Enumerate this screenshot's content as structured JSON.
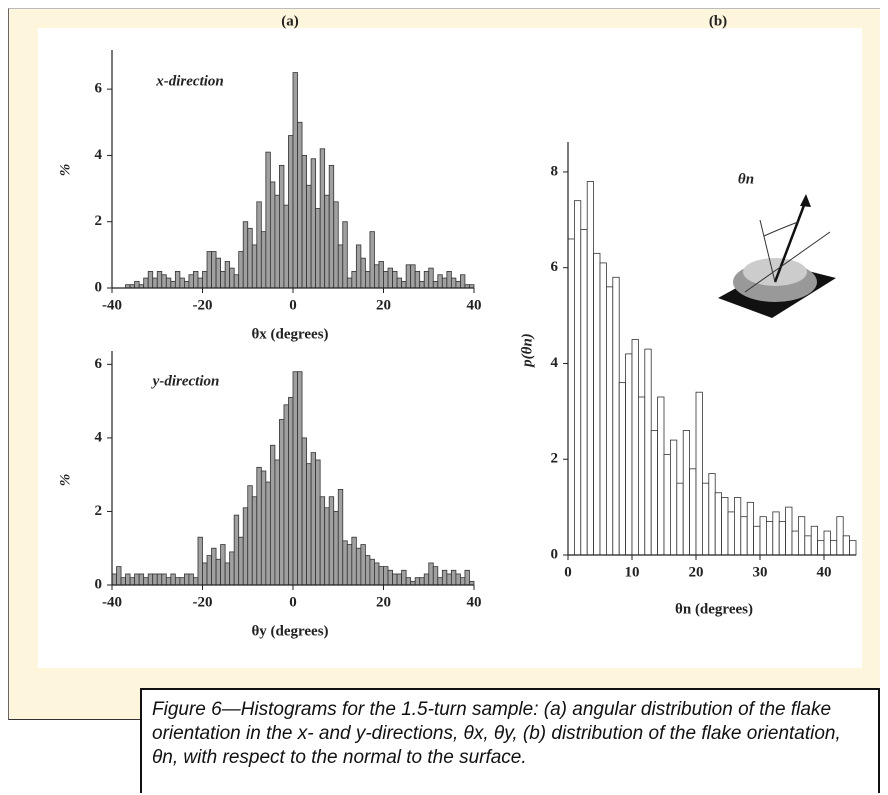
{
  "chart_data": [
    {
      "type": "histogram",
      "title": "(a)",
      "annotation": "x-direction",
      "xlabel": "θx (degrees)",
      "ylabel": "%",
      "bins": [
        -40,
        -39,
        -38,
        -37,
        -36,
        -35,
        -34,
        -33,
        -32,
        -31,
        -30,
        -29,
        -28,
        -27,
        -26,
        -25,
        -24,
        -23,
        -22,
        -21,
        -20,
        -19,
        -18,
        -17,
        -16,
        -15,
        -14,
        -13,
        -12,
        -11,
        -10,
        -9,
        -8,
        -7,
        -6,
        -5,
        -4,
        -3,
        -2,
        -1,
        0,
        1,
        2,
        3,
        4,
        5,
        6,
        7,
        8,
        9,
        10,
        11,
        12,
        13,
        14,
        15,
        16,
        17,
        18,
        19,
        20,
        21,
        22,
        23,
        24,
        25,
        26,
        27,
        28,
        29,
        30,
        31,
        32,
        33,
        34,
        35,
        36,
        37,
        38,
        39,
        40
      ],
      "counts": [
        0,
        0,
        0,
        0.1,
        0.1,
        0.2,
        0.1,
        0.3,
        0.5,
        0.3,
        0.5,
        0.4,
        0.3,
        0.2,
        0.5,
        0.3,
        0.2,
        0.4,
        0.5,
        0.3,
        0.5,
        1.1,
        1.1,
        0.9,
        0.5,
        0.8,
        0.6,
        0.4,
        1.1,
        2.0,
        1.8,
        1.3,
        2.6,
        1.7,
        4.1,
        3.2,
        2.8,
        3.7,
        2.5,
        4.6,
        6.5,
        5.0,
        4.0,
        3.1,
        3.9,
        2.4,
        4.2,
        2.8,
        3.7,
        2.6,
        1.3,
        2.0,
        0.3,
        0.5,
        1.3,
        0.9,
        0.5,
        1.7,
        0.7,
        0.8,
        0.5,
        0.6,
        0.5,
        0.3,
        0.2,
        0.7,
        0.7,
        0.5,
        0.2,
        0.5,
        0.6,
        0.2,
        0.4,
        0.3,
        0.5,
        0.3,
        0.2,
        0.4,
        0.1,
        0.1
      ],
      "xlim": [
        -40,
        40
      ],
      "ylim": [
        0,
        7
      ],
      "xticks": [
        -40,
        -20,
        0,
        20,
        40
      ],
      "yticks": [
        0,
        2,
        4,
        6
      ],
      "color": "#a0a0a0"
    },
    {
      "type": "histogram",
      "annotation": "y-direction",
      "xlabel": "θy (degrees)",
      "ylabel": "%",
      "bins": [
        -40,
        -39,
        -38,
        -37,
        -36,
        -35,
        -34,
        -33,
        -32,
        -31,
        -30,
        -29,
        -28,
        -27,
        -26,
        -25,
        -24,
        -23,
        -22,
        -21,
        -20,
        -19,
        -18,
        -17,
        -16,
        -15,
        -14,
        -13,
        -12,
        -11,
        -10,
        -9,
        -8,
        -7,
        -6,
        -5,
        -4,
        -3,
        -2,
        -1,
        0,
        1,
        2,
        3,
        4,
        5,
        6,
        7,
        8,
        9,
        10,
        11,
        12,
        13,
        14,
        15,
        16,
        17,
        18,
        19,
        20,
        21,
        22,
        23,
        24,
        25,
        26,
        27,
        28,
        29,
        30,
        31,
        32,
        33,
        34,
        35,
        36,
        37,
        38,
        39,
        40
      ],
      "counts": [
        0.3,
        0.5,
        0.2,
        0.3,
        0.2,
        0.3,
        0.3,
        0.2,
        0.3,
        0.3,
        0.3,
        0.3,
        0.2,
        0.3,
        0.2,
        0.2,
        0.3,
        0.3,
        0.2,
        1.3,
        0.6,
        0.8,
        1.0,
        0.7,
        1.1,
        0.6,
        0.9,
        1.9,
        1.3,
        2.1,
        2.7,
        2.4,
        3.2,
        3.1,
        2.8,
        3.8,
        3.4,
        4.5,
        4.9,
        5.1,
        5.8,
        5.8,
        4.0,
        3.3,
        3.6,
        3.4,
        2.4,
        2.1,
        2.4,
        2.0,
        2.6,
        1.2,
        1.1,
        1.3,
        1.0,
        1.1,
        0.8,
        0.7,
        0.6,
        0.5,
        0.5,
        0.4,
        0.3,
        0.3,
        0.4,
        0.2,
        0.1,
        0.2,
        0.2,
        0.3,
        0.6,
        0.5,
        0.2,
        0.4,
        0.3,
        0.4,
        0.3,
        0.2,
        0.4,
        0.1
      ],
      "xlim": [
        -40,
        40
      ],
      "ylim": [
        0,
        6.2
      ],
      "xticks": [
        -40,
        -20,
        0,
        20,
        40
      ],
      "yticks": [
        0,
        2,
        4,
        6
      ],
      "color": "#a0a0a0"
    },
    {
      "type": "histogram",
      "title": "(b)",
      "annotation": "θn",
      "xlabel": "θn (degrees)",
      "ylabel": "p(θn)",
      "bins": [
        0,
        1,
        2,
        3,
        4,
        5,
        6,
        7,
        8,
        9,
        10,
        11,
        12,
        13,
        14,
        15,
        16,
        17,
        18,
        19,
        20,
        21,
        22,
        23,
        24,
        25,
        26,
        27,
        28,
        29,
        30,
        31,
        32,
        33,
        34,
        35,
        36,
        37,
        38,
        39,
        40,
        41,
        42,
        43,
        44,
        45
      ],
      "counts": [
        6.6,
        7.4,
        6.8,
        7.8,
        6.3,
        6.1,
        5.6,
        5.8,
        3.6,
        4.2,
        4.5,
        3.3,
        4.3,
        2.6,
        3.3,
        2.1,
        2.4,
        1.5,
        2.6,
        1.8,
        3.4,
        1.5,
        1.7,
        1.3,
        1.2,
        0.9,
        1.2,
        0.8,
        1.1,
        0.6,
        0.8,
        0.7,
        0.9,
        0.7,
        1.0,
        0.5,
        0.8,
        0.4,
        0.6,
        0.3,
        0.5,
        0.3,
        0.8,
        0.4,
        0.3
      ],
      "xlim": [
        0,
        45
      ],
      "ylim": [
        0,
        8.5
      ],
      "xticks": [
        0,
        10,
        20,
        30,
        40
      ],
      "yticks": [
        0,
        2,
        4,
        6,
        8
      ],
      "color": "#ffffff"
    }
  ],
  "caption": "Figure 6—Histograms for the 1.5-turn sample: (a) angular distribution of the flake orientation in the x- and y-directions, θx, θy, (b) distribution of the flake orientation, θn, with respect to the normal to the surface."
}
